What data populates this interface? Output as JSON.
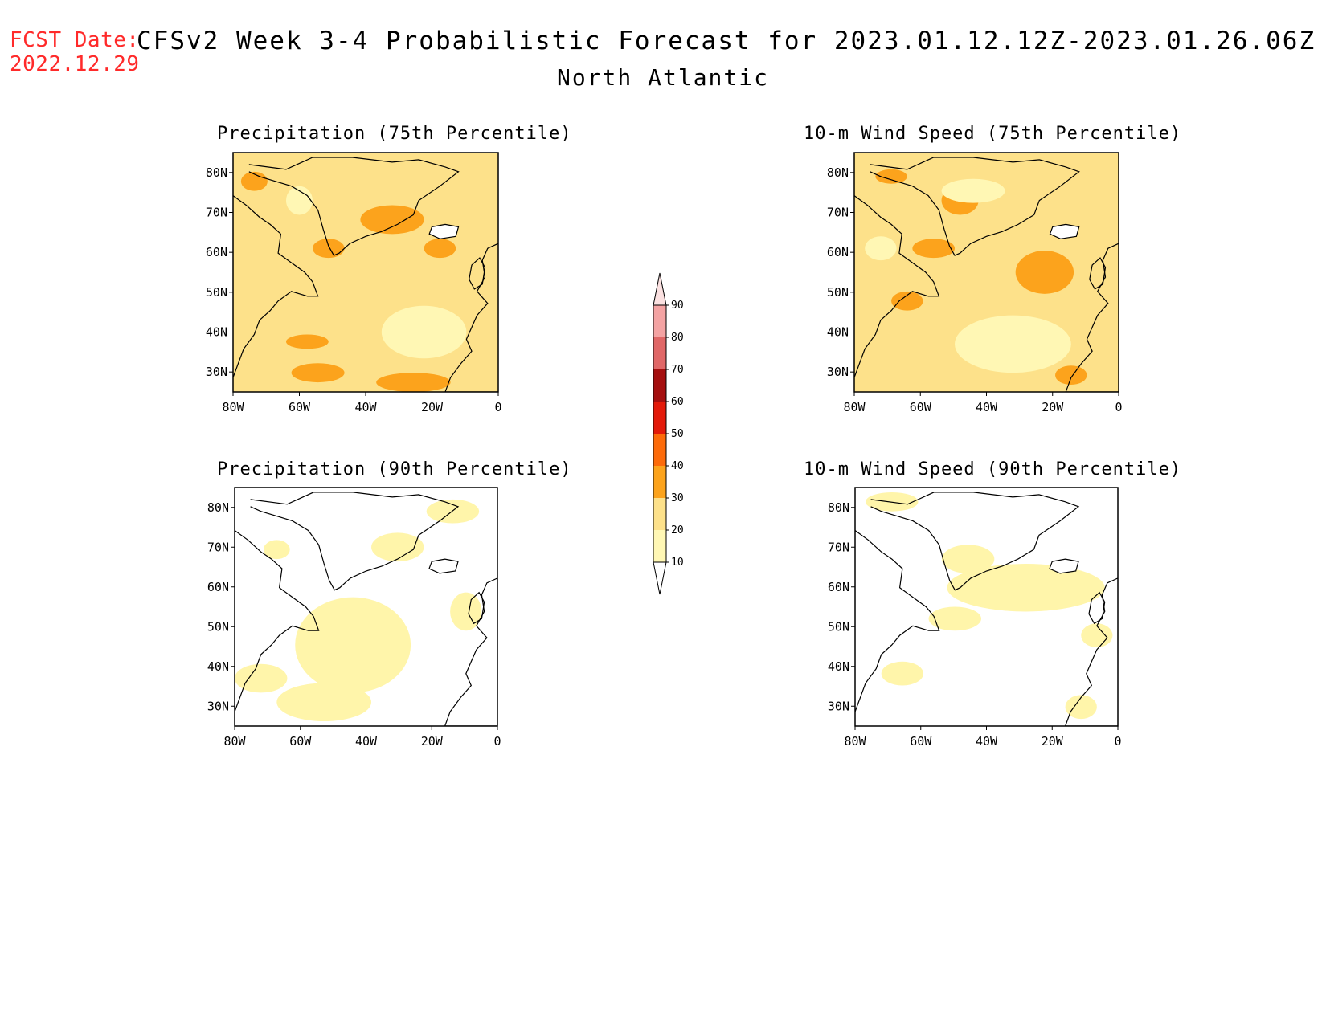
{
  "header": {
    "fcst_label": "FCST Date:",
    "fcst_date": "2022.12.29",
    "title": "CFSv2 Week 3-4 Probabilistic Forecast for 2023.01.12.12Z-2023.01.26.06Z",
    "region": "North Atlantic"
  },
  "panels": [
    {
      "id": "precip-75",
      "title": "Precipitation (75th Percentile)",
      "fill": "#fde18a",
      "blob_color": "#fca31c",
      "light_color": "#fff7b4",
      "intensity": "high"
    },
    {
      "id": "wind-75",
      "title": "10-m Wind Speed (75th Percentile)",
      "fill": "#fde18a",
      "blob_color": "#fca31c",
      "light_color": "#fff7b4",
      "intensity": "high"
    },
    {
      "id": "precip-90",
      "title": "Precipitation (90th Percentile)",
      "fill": "#ffffff",
      "blob_color": "#fff5aa",
      "light_color": "#fff5aa",
      "intensity": "low"
    },
    {
      "id": "wind-90",
      "title": "10-m Wind Speed (90th Percentile)",
      "fill": "#ffffff",
      "blob_color": "#fff5aa",
      "light_color": "#fff5aa",
      "intensity": "low"
    }
  ],
  "axes": {
    "lon_labels": [
      "80W",
      "60W",
      "40W",
      "20W",
      "0"
    ],
    "lat_labels": [
      "80N",
      "70N",
      "60N",
      "50N",
      "40N",
      "30N"
    ],
    "lon_range": [
      -80,
      0
    ],
    "lat_range": [
      25,
      85
    ]
  },
  "colorbar": {
    "levels": [
      "10",
      "20",
      "30",
      "40",
      "50",
      "60",
      "70",
      "80",
      "90"
    ],
    "colors": [
      "#fff7b4",
      "#fde18a",
      "#fca31c",
      "#fd6b0a",
      "#e31a0a",
      "#a50f0f",
      "#e06767",
      "#f4a3a3",
      "#fbe1e1"
    ]
  }
}
